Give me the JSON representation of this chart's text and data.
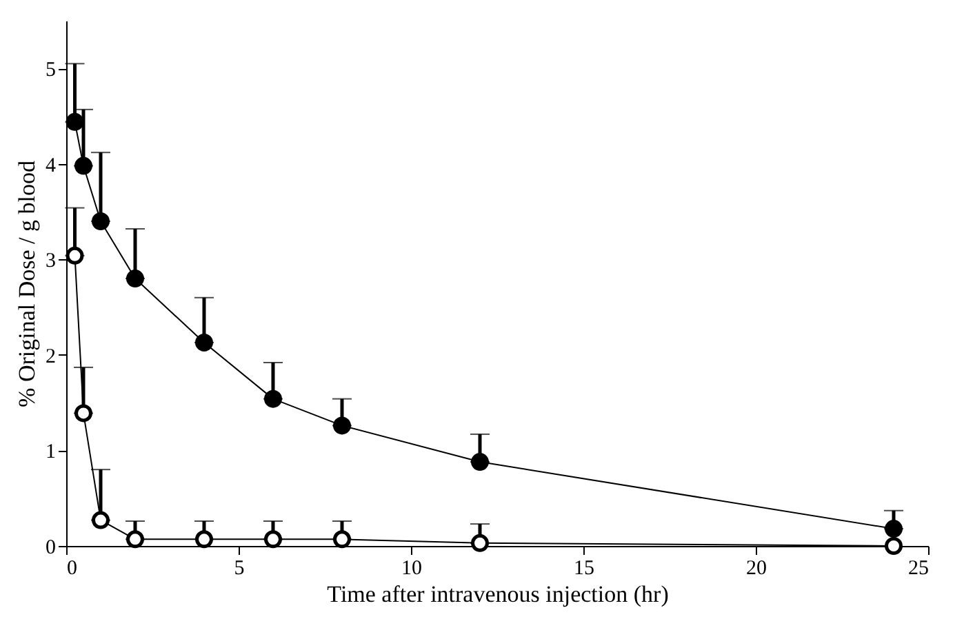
{
  "chart_data": {
    "type": "line",
    "xlabel": "Time after intravenous injection (hr)",
    "ylabel": "% Original Dose / g blood",
    "xlim": [
      0,
      25
    ],
    "xticks": [
      0,
      5,
      10,
      15,
      20,
      25
    ],
    "ylim": [
      0,
      5.5
    ],
    "yticks": [
      0,
      1,
      2,
      3,
      4,
      5
    ],
    "marker": "circle",
    "line_style": "solid",
    "series": [
      {
        "color": "#000000",
        "x": [
          0.25,
          0.5,
          1,
          2,
          4,
          6,
          8,
          12,
          24
        ],
        "values": [
          4.44,
          3.98,
          3.4,
          2.8,
          2.13,
          1.54,
          1.26,
          0.88,
          0.18
        ],
        "errors": [
          [
            4.44,
            5.05
          ],
          [
            3.98,
            4.57
          ],
          [
            3.4,
            4.12
          ],
          [
            2.8,
            3.32
          ],
          [
            2.13,
            2.6
          ],
          [
            1.54,
            1.92
          ],
          [
            1.26,
            1.54
          ],
          [
            0.88,
            1.17
          ],
          [
            0.18,
            0.37
          ]
        ]
      },
      {
        "color": "#ffffff",
        "x": [
          0.25,
          0.5,
          1,
          2,
          4,
          6,
          8,
          12,
          24
        ],
        "values": [
          3.04,
          1.39,
          0.27,
          0.07,
          0.07,
          0.07,
          0.07,
          0.03,
          0
        ],
        "errors": [
          [
            3.04,
            3.54
          ],
          [
            1.39,
            1.87
          ],
          [
            0.27,
            0.8
          ],
          [
            0.07,
            0.26
          ],
          [
            0.07,
            0.26
          ],
          [
            0.07,
            0.26
          ],
          [
            0.07,
            0.26
          ],
          [
            0.03,
            0.23
          ],
          null
        ]
      }
    ]
  }
}
